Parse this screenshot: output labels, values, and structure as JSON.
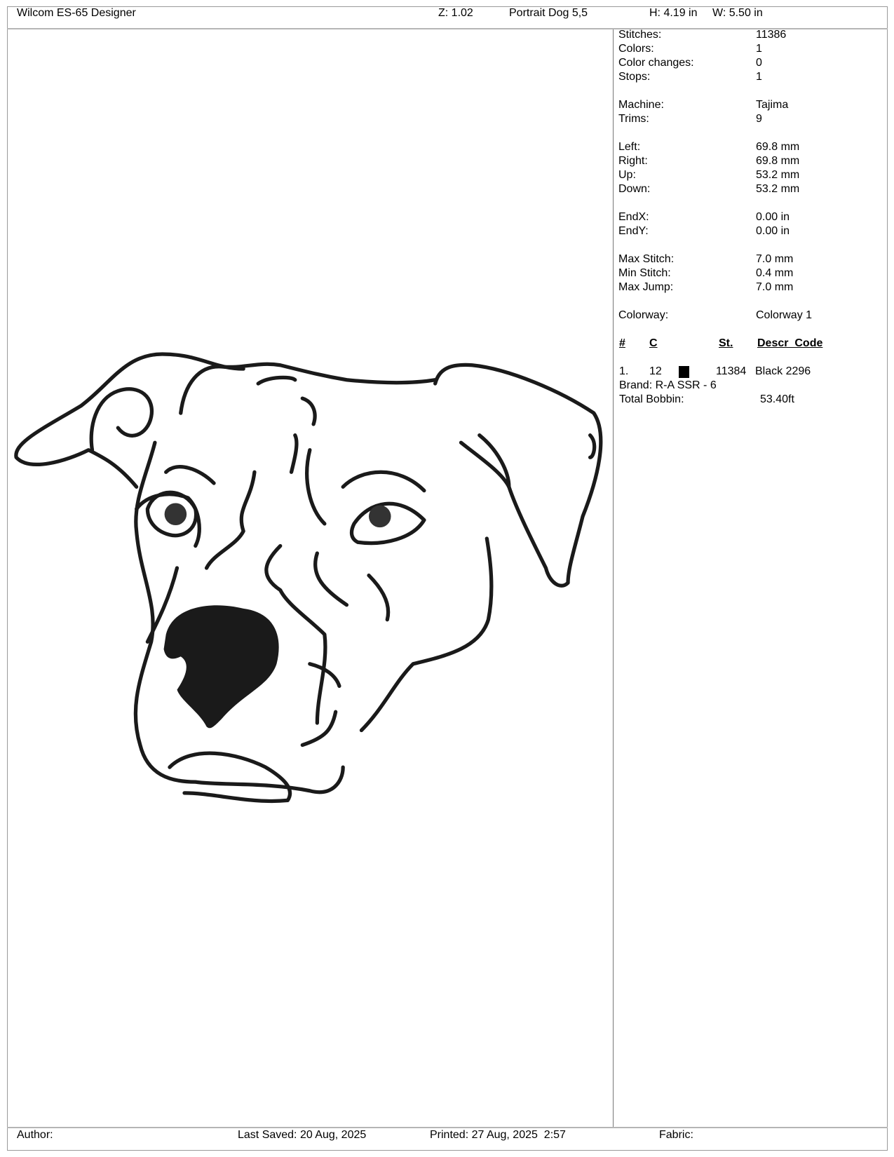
{
  "header": {
    "app_title": "Wilcom ES-65 Designer",
    "zoom": "Z: 1.02",
    "design_name": "Portrait Dog 5,5",
    "height": "H: 4.19 in",
    "width": "W: 5.50 in"
  },
  "info": {
    "stitches": {
      "label": "Stitches:",
      "value": "11386"
    },
    "colors": {
      "label": "Colors:",
      "value": "1"
    },
    "color_changes": {
      "label": "Color changes:",
      "value": "0"
    },
    "stops": {
      "label": "Stops:",
      "value": "1"
    },
    "machine": {
      "label": "Machine:",
      "value": "Tajima"
    },
    "trims": {
      "label": "Trims:",
      "value": "9"
    },
    "left": {
      "label": "Left:",
      "value": "69.8 mm"
    },
    "right": {
      "label": "Right:",
      "value": "69.8 mm"
    },
    "up": {
      "label": "Up:",
      "value": "53.2 mm"
    },
    "down": {
      "label": "Down:",
      "value": "53.2 mm"
    },
    "endx": {
      "label": "EndX:",
      "value": "0.00 in"
    },
    "endy": {
      "label": "EndY:",
      "value": "0.00 in"
    },
    "max_stitch": {
      "label": "Max Stitch:",
      "value": "7.0 mm"
    },
    "min_stitch": {
      "label": "Min Stitch:",
      "value": "0.4 mm"
    },
    "max_jump": {
      "label": "Max Jump:",
      "value": "7.0 mm"
    },
    "colorway": {
      "label": "Colorway:",
      "value": "Colorway 1"
    }
  },
  "color_table": {
    "headers": {
      "num": "#",
      "c": "C",
      "st": "St.",
      "descr": "Descr  Code"
    },
    "rows": [
      {
        "num": "1.",
        "c": "12",
        "swatch": "#000000",
        "st": "11384",
        "descr": "Black 2296"
      }
    ],
    "brand": "Brand: R-A SSR - 6",
    "total_bobbin_label": "Total Bobbin:",
    "total_bobbin_value": "53.40ft"
  },
  "footer": {
    "author": "Author:",
    "last_saved": "Last Saved: 20 Aug, 2025",
    "printed": "Printed: 27 Aug, 2025  2:57",
    "fabric": "Fabric:"
  },
  "design_preview": {
    "thread_color": "#1a1a1a",
    "subject": "dog-head-outline"
  }
}
